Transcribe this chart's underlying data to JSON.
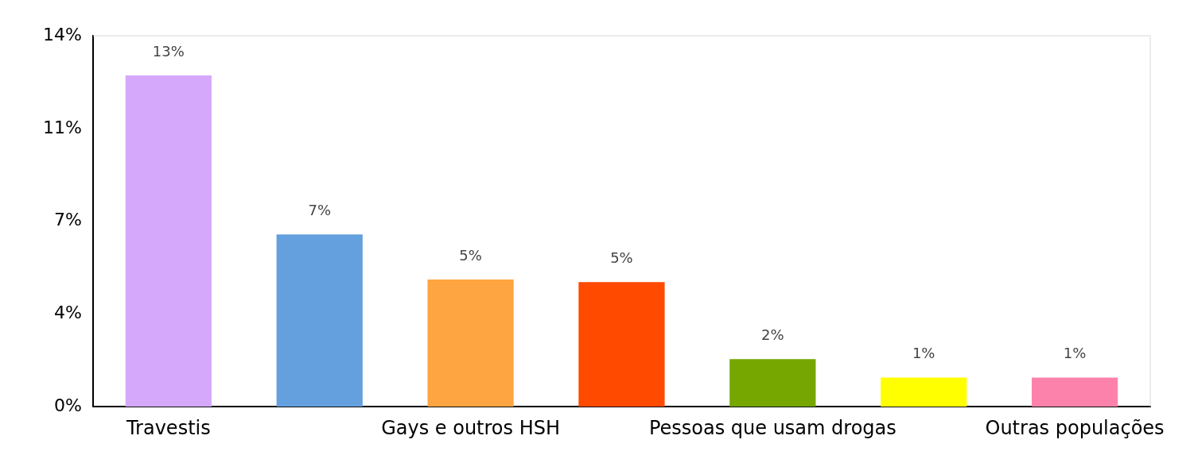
{
  "chart_data": {
    "type": "bar",
    "categories": [
      "Travestis",
      null,
      "Gays e outros HSH",
      null,
      "Pessoas que usam drogas",
      null,
      "Outras populações"
    ],
    "values": [
      12.5,
      6.5,
      4.8,
      4.7,
      1.8,
      1.1,
      1.1
    ],
    "colors": [
      "#d5a8fb",
      "#64a0de",
      "#fea440",
      "#ff4a00",
      "#76a600",
      "#ffff00",
      "#fd82ab"
    ],
    "value_labels": [
      "13%",
      "7%",
      "5%",
      "5%",
      "2%",
      "1%",
      "1%"
    ],
    "ylim": [
      0,
      14
    ],
    "yticks": [
      {
        "value": 0,
        "label": "0%"
      },
      {
        "value": 3.5,
        "label": "4%"
      },
      {
        "value": 7,
        "label": "7%"
      },
      {
        "value": 10.5,
        "label": "11%"
      },
      {
        "value": 14,
        "label": "14%"
      }
    ],
    "grid": false,
    "legend": false
  }
}
